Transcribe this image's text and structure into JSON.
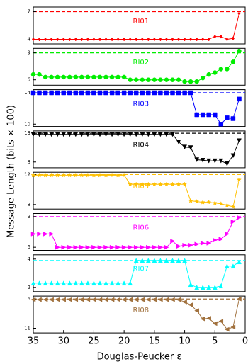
{
  "ylabel": "Message Length (bits × 100)",
  "chart_data": [
    {
      "type": "line",
      "x": [
        35,
        34,
        33,
        32,
        31,
        30,
        29,
        28,
        27,
        26,
        25,
        24,
        23,
        22,
        21,
        20,
        19,
        18,
        17,
        16,
        15,
        14,
        13,
        12,
        11,
        10,
        9,
        8,
        7,
        6,
        5,
        4,
        3,
        2,
        1
      ],
      "xlim": [
        35,
        0
      ],
      "ylim": [
        3.5,
        7.5
      ],
      "yticks": [
        4,
        7
      ],
      "reference": 7,
      "marker": "diamond",
      "series": [
        {
          "name": "RI01",
          "color": "#ff0000",
          "values": [
            4,
            4,
            4,
            4,
            4,
            4,
            4,
            4,
            4,
            4,
            4,
            4,
            4,
            4,
            4,
            4,
            4,
            4,
            4,
            4,
            4,
            4,
            4,
            4,
            4,
            4,
            4,
            4,
            4,
            4,
            4.3,
            4.3,
            4.0,
            4.1,
            6.8
          ]
        }
      ]
    },
    {
      "type": "line",
      "x": [
        35,
        34,
        33,
        32,
        31,
        30,
        29,
        28,
        27,
        26,
        25,
        24,
        23,
        22,
        21,
        20,
        19,
        18,
        17,
        16,
        15,
        14,
        13,
        12,
        11,
        10,
        9,
        8,
        7,
        6,
        5,
        4,
        3,
        2,
        1
      ],
      "xlim": [
        35,
        0
      ],
      "ylim": [
        5.4,
        9.5
      ],
      "yticks": [
        6,
        9
      ],
      "reference": 9,
      "marker": "circle",
      "series": [
        {
          "name": "RI02",
          "color": "#00ee00",
          "values": [
            6.6,
            6.6,
            6.3,
            6.3,
            6.3,
            6.3,
            6.3,
            6.3,
            6.3,
            6.3,
            6.3,
            6.3,
            6.3,
            6.3,
            6.3,
            6.3,
            6.0,
            6.0,
            6.0,
            6.0,
            6.0,
            6.0,
            6.0,
            6.0,
            6.0,
            5.8,
            5.8,
            5.8,
            6.2,
            6.6,
            6.8,
            7.2,
            7.2,
            8.0,
            9.2
          ]
        }
      ]
    },
    {
      "type": "line",
      "x": [
        35,
        34,
        33,
        32,
        31,
        30,
        29,
        28,
        27,
        26,
        25,
        24,
        23,
        22,
        21,
        20,
        19,
        18,
        17,
        16,
        15,
        14,
        13,
        12,
        11,
        10,
        9,
        8,
        7,
        6,
        5,
        4,
        3,
        2,
        1
      ],
      "xlim": [
        35,
        0
      ],
      "ylim": [
        9.7,
        14.4
      ],
      "yticks": [
        10,
        14
      ],
      "reference": 14,
      "marker": "square",
      "series": [
        {
          "name": "RI03",
          "color": "#0000ff",
          "values": [
            14,
            14,
            14,
            14,
            14,
            14,
            14,
            14,
            14,
            14,
            14,
            14,
            14,
            14,
            14,
            14,
            14,
            14,
            14,
            14,
            14,
            14,
            14,
            14,
            14,
            14,
            14,
            11.2,
            11.2,
            11.2,
            11.2,
            10.0,
            10.8,
            10.7,
            13.2
          ]
        }
      ]
    },
    {
      "type": "line",
      "x": [
        35,
        34,
        33,
        32,
        31,
        30,
        29,
        28,
        27,
        26,
        25,
        24,
        23,
        22,
        21,
        20,
        19,
        18,
        17,
        16,
        15,
        14,
        13,
        12,
        11,
        10,
        9,
        8,
        7,
        6,
        5,
        4,
        3,
        2,
        1
      ],
      "xlim": [
        35,
        0
      ],
      "ylim": [
        7.0,
        13.4
      ],
      "yticks": [
        8,
        13
      ],
      "reference": 13,
      "marker": "triangle-down",
      "series": [
        {
          "name": "RI04",
          "color": "#000000",
          "values": [
            12.8,
            12.8,
            12.8,
            12.8,
            12.8,
            12.8,
            12.8,
            12.8,
            12.8,
            12.8,
            12.8,
            12.8,
            12.8,
            12.8,
            12.8,
            12.8,
            12.8,
            12.8,
            12.8,
            12.8,
            12.8,
            12.8,
            12.8,
            12.8,
            11.5,
            10.6,
            10.5,
            8.4,
            8.3,
            8.2,
            8.2,
            8.2,
            7.7,
            9.1,
            11.7
          ]
        }
      ]
    },
    {
      "type": "line",
      "x": [
        35,
        34,
        33,
        32,
        31,
        30,
        29,
        28,
        27,
        26,
        25,
        24,
        23,
        22,
        21,
        20,
        19,
        18,
        17,
        16,
        15,
        14,
        13,
        12,
        11,
        10,
        9,
        8,
        7,
        6,
        5,
        4,
        3,
        2,
        1
      ],
      "xlim": [
        35,
        0
      ],
      "ylim": [
        7.4,
        12.3
      ],
      "yticks": [
        8,
        12
      ],
      "reference": 12,
      "marker": "star",
      "series": [
        {
          "name": "RI05",
          "color": "#ffc000",
          "values": [
            11.9,
            11.9,
            11.9,
            11.9,
            11.9,
            11.9,
            11.9,
            11.9,
            11.9,
            11.9,
            11.9,
            11.9,
            11.9,
            11.9,
            11.9,
            11.9,
            10.7,
            10.7,
            10.7,
            10.7,
            10.7,
            10.7,
            10.7,
            10.7,
            10.7,
            10.7,
            8.5,
            8.4,
            8.3,
            8.3,
            8.2,
            8.1,
            7.9,
            7.7,
            11.3
          ]
        }
      ]
    },
    {
      "type": "line",
      "x": [
        35,
        34,
        33,
        32,
        31,
        30,
        29,
        28,
        27,
        26,
        25,
        24,
        23,
        22,
        21,
        20,
        19,
        18,
        17,
        16,
        15,
        14,
        13,
        12,
        11,
        10,
        9,
        8,
        7,
        6,
        5,
        4,
        3,
        2,
        1
      ],
      "xlim": [
        35,
        0
      ],
      "ylim": [
        5.7,
        9.3
      ],
      "yticks": [
        6,
        9
      ],
      "reference": 9,
      "marker": "triangle-right",
      "series": [
        {
          "name": "RI06",
          "color": "#ff00ff",
          "values": [
            7.3,
            7.3,
            7.3,
            7.3,
            6.0,
            6.0,
            6.0,
            6.0,
            6.0,
            6.0,
            6.0,
            6.0,
            6.0,
            6.0,
            6.0,
            6.0,
            6.0,
            6.0,
            6.0,
            6.0,
            6.0,
            6.0,
            6.0,
            6.6,
            6.1,
            6.2,
            6.2,
            6.3,
            6.4,
            6.4,
            6.7,
            6.8,
            7.3,
            8.5,
            8.9
          ]
        }
      ]
    },
    {
      "type": "line",
      "x": [
        35,
        34,
        33,
        32,
        31,
        30,
        29,
        28,
        27,
        26,
        25,
        24,
        23,
        22,
        21,
        20,
        19,
        18,
        17,
        16,
        15,
        14,
        13,
        12,
        11,
        10,
        9,
        8,
        7,
        6,
        5,
        4,
        3,
        2,
        1
      ],
      "xlim": [
        35,
        0
      ],
      "ylim": [
        1.7,
        4.3
      ],
      "yticks": [
        2,
        4
      ],
      "reference": 3.9,
      "marker": "triangle-up",
      "series": [
        {
          "name": "RI07",
          "color": "#00ffff",
          "values": [
            2.3,
            2.3,
            2.3,
            2.3,
            2.3,
            2.3,
            2.3,
            2.3,
            2.3,
            2.3,
            2.3,
            2.3,
            2.3,
            2.3,
            2.3,
            2.3,
            2.3,
            3.9,
            3.9,
            3.9,
            3.9,
            3.9,
            3.9,
            3.9,
            3.9,
            3.9,
            2.2,
            2.0,
            2.0,
            2.0,
            2.0,
            2.1,
            3.5,
            3.5,
            3.8
          ]
        }
      ]
    },
    {
      "type": "line",
      "x": [
        35,
        34,
        33,
        32,
        31,
        30,
        29,
        28,
        27,
        26,
        25,
        24,
        23,
        22,
        21,
        20,
        19,
        18,
        17,
        16,
        15,
        14,
        13,
        12,
        11,
        10,
        9,
        8,
        7,
        6,
        5,
        4,
        3,
        2,
        1
      ],
      "xlim": [
        35,
        0
      ],
      "ylim": [
        10.2,
        16.5
      ],
      "yticks": [
        11,
        16
      ],
      "reference": 16,
      "marker": "triangle-left",
      "xticks": [
        35,
        30,
        25,
        20,
        15,
        10,
        5,
        0
      ],
      "xlabel": "Douglas-Peucker ε",
      "series": [
        {
          "name": "RI08",
          "color": "#a0703c",
          "values": [
            15.9,
            15.9,
            15.9,
            15.9,
            15.9,
            15.9,
            15.9,
            15.9,
            15.9,
            15.9,
            15.9,
            15.9,
            15.9,
            15.9,
            15.9,
            15.9,
            15.9,
            15.9,
            15.9,
            15.9,
            15.9,
            15.9,
            15.9,
            15.9,
            15.9,
            15.5,
            15.0,
            14.0,
            12.6,
            12.7,
            11.8,
            12.2,
            10.8,
            11.2,
            16.0
          ]
        }
      ]
    }
  ]
}
